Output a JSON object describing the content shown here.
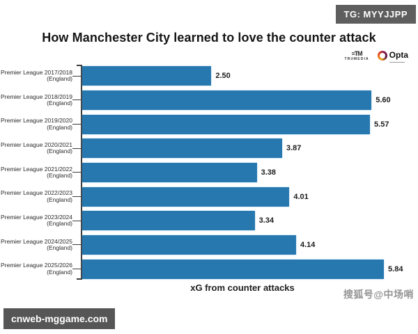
{
  "badge_tg": {
    "label": "TG: MYYJJPP"
  },
  "header": {
    "title": "How Manchester City learned to love the counter attack"
  },
  "logos": {
    "trumedia_glyph": "≡TM",
    "trumedia_text": "TRUMEDIA",
    "opta_text": "Opta"
  },
  "chart_data": {
    "type": "bar",
    "orientation": "horizontal",
    "title": "How Manchester City learned to love the counter attack",
    "xlabel": "xG from counter attacks",
    "ylabel": "",
    "xlim": [
      0,
      6.5
    ],
    "grid": false,
    "bar_color": "#2878b0",
    "categories": [
      "Premier League 2017/2018 (England)",
      "Premier League 2018/2019 (England)",
      "Premier League 2019/2020 (England)",
      "Premier League 2020/2021 (England)",
      "Premier League 2021/2022 (England)",
      "Premier League 2022/2023 (England)",
      "Premier League 2023/2024 (England)",
      "Premier League 2024/2025 (England)",
      "Premier League 2025/2026 (England)"
    ],
    "values": [
      2.5,
      5.6,
      5.57,
      3.87,
      3.38,
      4.01,
      3.34,
      4.14,
      5.84
    ],
    "value_labels": [
      "2.50",
      "5.60",
      "5.57",
      "3.87",
      "3.38",
      "4.01",
      "3.34",
      "4.14",
      "5.84"
    ]
  },
  "watermarks": {
    "sohu": "搜狐号@中场哨",
    "site": "cnweb-mggame.com"
  }
}
